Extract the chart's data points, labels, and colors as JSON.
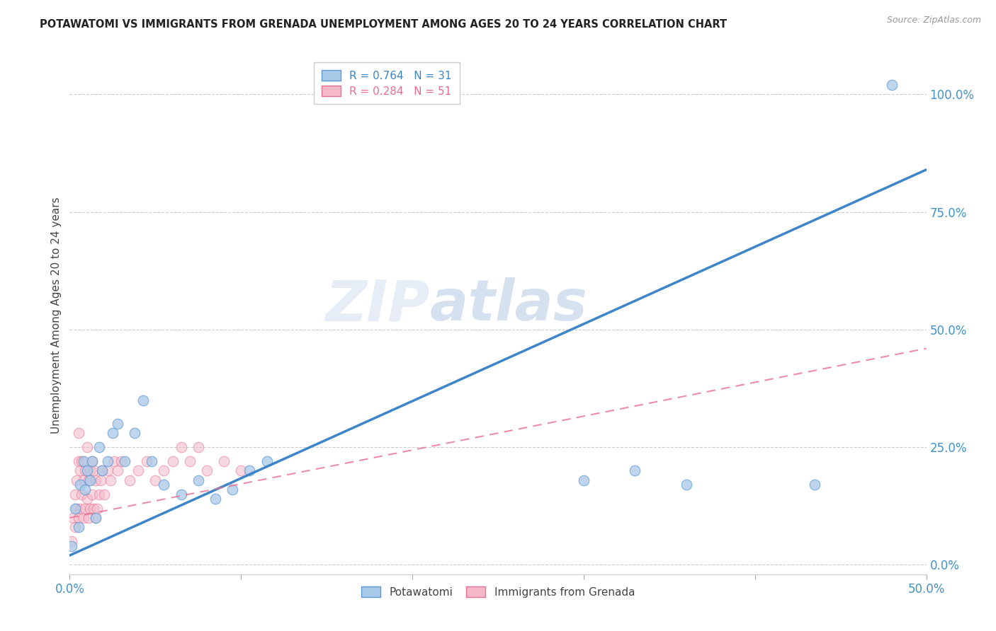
{
  "title": "POTAWATOMI VS IMMIGRANTS FROM GRENADA UNEMPLOYMENT AMONG AGES 20 TO 24 YEARS CORRELATION CHART",
  "source": "Source: ZipAtlas.com",
  "ylabel": "Unemployment Among Ages 20 to 24 years",
  "xlim": [
    0.0,
    0.5
  ],
  "ylim": [
    -0.02,
    1.08
  ],
  "xticks": [
    0.0,
    0.1,
    0.2,
    0.3,
    0.4,
    0.5
  ],
  "xticklabels": [
    "0.0%",
    "",
    "",
    "",
    "",
    "50.0%"
  ],
  "yticks_right": [
    0.0,
    0.25,
    0.5,
    0.75,
    1.0
  ],
  "yticklabels_right": [
    "0.0%",
    "25.0%",
    "50.0%",
    "75.0%",
    "100.0%"
  ],
  "background_color": "#ffffff",
  "grid_color": "#cccccc",
  "watermark_zip": "ZIP",
  "watermark_atlas": "atlas",
  "blue_color": "#a8c8e8",
  "blue_color_dark": "#3d85c8",
  "blue_edge": "#5b9bd5",
  "pink_color": "#f4b8c8",
  "pink_color_dark": "#e87090",
  "pink_edge": "#e87090",
  "legend1_label": "R = 0.764   N = 31",
  "legend2_label": "R = 0.284   N = 51",
  "potawatomi_label": "Potawatomi",
  "grenada_label": "Immigrants from Grenada",
  "blue_scatter_x": [
    0.001,
    0.003,
    0.005,
    0.006,
    0.008,
    0.009,
    0.01,
    0.012,
    0.013,
    0.015,
    0.017,
    0.019,
    0.022,
    0.025,
    0.028,
    0.032,
    0.038,
    0.043,
    0.048,
    0.055,
    0.065,
    0.075,
    0.085,
    0.095,
    0.105,
    0.115,
    0.3,
    0.33,
    0.36,
    0.435,
    0.48
  ],
  "blue_scatter_y": [
    0.04,
    0.12,
    0.08,
    0.17,
    0.22,
    0.16,
    0.2,
    0.18,
    0.22,
    0.1,
    0.25,
    0.2,
    0.22,
    0.28,
    0.3,
    0.22,
    0.28,
    0.35,
    0.22,
    0.17,
    0.15,
    0.18,
    0.14,
    0.16,
    0.2,
    0.22,
    0.18,
    0.2,
    0.17,
    0.17,
    1.02
  ],
  "pink_scatter_x": [
    0.001,
    0.002,
    0.003,
    0.003,
    0.004,
    0.004,
    0.005,
    0.005,
    0.006,
    0.006,
    0.007,
    0.007,
    0.008,
    0.008,
    0.009,
    0.009,
    0.01,
    0.01,
    0.011,
    0.011,
    0.012,
    0.012,
    0.013,
    0.013,
    0.014,
    0.014,
    0.015,
    0.015,
    0.016,
    0.017,
    0.018,
    0.019,
    0.02,
    0.022,
    0.024,
    0.026,
    0.028,
    0.03,
    0.035,
    0.04,
    0.045,
    0.05,
    0.055,
    0.06,
    0.065,
    0.07,
    0.075,
    0.08,
    0.09,
    0.1,
    0.005
  ],
  "pink_scatter_y": [
    0.05,
    0.1,
    0.08,
    0.15,
    0.12,
    0.18,
    0.1,
    0.22,
    0.12,
    0.2,
    0.15,
    0.22,
    0.1,
    0.18,
    0.12,
    0.2,
    0.14,
    0.25,
    0.1,
    0.18,
    0.12,
    0.2,
    0.15,
    0.22,
    0.12,
    0.2,
    0.1,
    0.18,
    0.12,
    0.15,
    0.18,
    0.2,
    0.15,
    0.2,
    0.18,
    0.22,
    0.2,
    0.22,
    0.18,
    0.2,
    0.22,
    0.18,
    0.2,
    0.22,
    0.25,
    0.22,
    0.25,
    0.2,
    0.22,
    0.2,
    0.28
  ],
  "blue_line_x": [
    0.0,
    0.5
  ],
  "blue_line_y": [
    0.02,
    0.84
  ],
  "pink_line_x": [
    0.0,
    0.5
  ],
  "pink_line_y": [
    0.1,
    0.46
  ]
}
